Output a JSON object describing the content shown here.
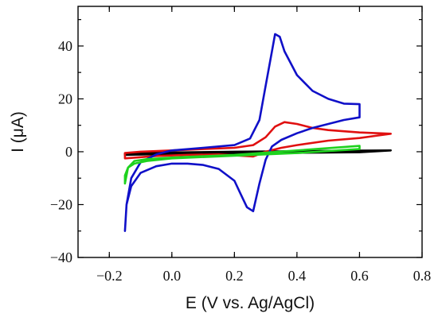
{
  "chart_data": {
    "type": "line",
    "title": "",
    "xlabel": "E (V vs. Ag/AgCl)",
    "ylabel": "I (μA)",
    "xlim": [
      -0.3,
      0.8
    ],
    "ylim": [
      -40,
      55
    ],
    "grid": false,
    "legend": "none",
    "x_ticks": [
      {
        "value": -0.2,
        "label": "−0.2"
      },
      {
        "value": 0.0,
        "label": "0.0"
      },
      {
        "value": 0.2,
        "label": "0.2"
      },
      {
        "value": 0.4,
        "label": "0.4"
      },
      {
        "value": 0.6,
        "label": "0.6"
      },
      {
        "value": 0.8,
        "label": "0.8"
      }
    ],
    "y_ticks": [
      {
        "value": -40,
        "label": "−40"
      },
      {
        "value": -20,
        "label": "−20"
      },
      {
        "value": 0,
        "label": "0"
      },
      {
        "value": 20,
        "label": "20"
      },
      {
        "value": 40,
        "label": "40"
      }
    ],
    "series": [
      {
        "color": "#000000",
        "x": [
          -0.15,
          0.0,
          0.2,
          0.4,
          0.6,
          0.7,
          0.7,
          0.6,
          0.4,
          0.2,
          0.0,
          -0.15,
          -0.15
        ],
        "y": [
          -0.8,
          -0.3,
          0.0,
          0.2,
          0.4,
          0.5,
          0.5,
          -0.2,
          -0.4,
          -0.6,
          -0.8,
          -1.2,
          -0.8
        ]
      },
      {
        "color": "#e01010",
        "x": [
          -0.15,
          -0.1,
          0.0,
          0.1,
          0.2,
          0.26,
          0.3,
          0.33,
          0.36,
          0.4,
          0.45,
          0.5,
          0.6,
          0.7,
          0.7,
          0.65,
          0.6,
          0.5,
          0.4,
          0.35,
          0.3,
          0.26,
          0.22,
          0.15,
          0.05,
          -0.05,
          -0.15,
          -0.15
        ],
        "y": [
          -0.5,
          0.0,
          0.5,
          1.0,
          1.5,
          2.5,
          5.5,
          9.5,
          11.2,
          10.5,
          9.0,
          8.2,
          7.3,
          6.8,
          6.8,
          6.0,
          5.2,
          4.2,
          2.5,
          1.5,
          0.0,
          -1.8,
          -1.5,
          -1.0,
          -1.2,
          -1.6,
          -2.5,
          -0.5
        ]
      },
      {
        "color": "#1010c8",
        "x": [
          -0.15,
          -0.145,
          -0.13,
          -0.1,
          -0.05,
          0.0,
          0.1,
          0.2,
          0.25,
          0.28,
          0.3,
          0.32,
          0.33,
          0.345,
          0.36,
          0.4,
          0.45,
          0.5,
          0.55,
          0.6,
          0.6,
          0.55,
          0.5,
          0.45,
          0.4,
          0.35,
          0.32,
          0.3,
          0.28,
          0.26,
          0.24,
          0.22,
          0.2,
          0.15,
          0.1,
          0.05,
          0.0,
          -0.05,
          -0.1,
          -0.13,
          -0.145,
          -0.15
        ],
        "y": [
          -30.0,
          -20.0,
          -10.0,
          -4.0,
          -1.0,
          0.5,
          1.5,
          2.5,
          5.0,
          12.0,
          25.0,
          38.0,
          44.5,
          43.5,
          38.0,
          29.0,
          23.0,
          20.0,
          18.2,
          18.0,
          13.0,
          12.0,
          10.5,
          9.0,
          7.0,
          4.5,
          2.0,
          -3.0,
          -12.0,
          -22.5,
          -21.0,
          -16.0,
          -11.0,
          -6.5,
          -5.0,
          -4.5,
          -4.5,
          -5.5,
          -8.0,
          -13.0,
          -20.0,
          -30.0
        ]
      },
      {
        "color": "#1ed21e",
        "x": [
          -0.15,
          -0.14,
          -0.12,
          -0.08,
          0.0,
          0.2,
          0.4,
          0.6,
          0.6,
          0.4,
          0.2,
          0.0,
          -0.08,
          -0.12,
          -0.14,
          -0.15,
          -0.15
        ],
        "y": [
          -12.0,
          -6.0,
          -3.5,
          -2.8,
          -2.2,
          -1.2,
          0.5,
          2.2,
          1.0,
          -0.5,
          -1.5,
          -2.5,
          -3.5,
          -4.5,
          -6.0,
          -9.0,
          -12.0
        ]
      }
    ]
  }
}
